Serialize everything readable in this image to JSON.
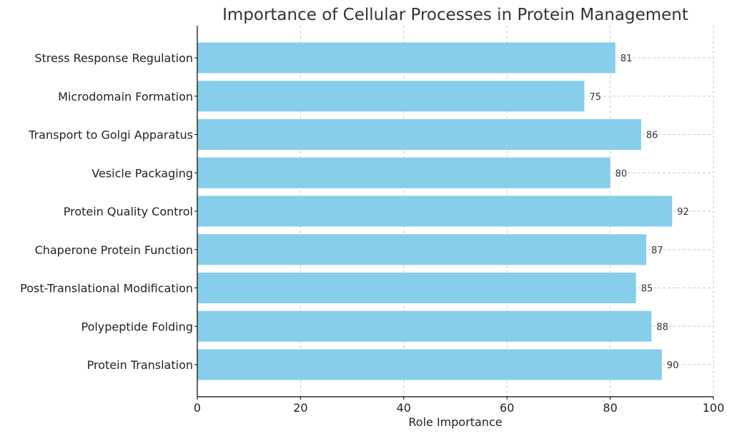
{
  "chart_data": {
    "type": "bar",
    "orientation": "horizontal",
    "title": "Importance of Cellular Processes in Protein Management",
    "xlabel": "Role Importance",
    "ylabel": "",
    "xlim": [
      0,
      100
    ],
    "xticks": [
      0,
      20,
      40,
      60,
      80,
      100
    ],
    "grid": true,
    "bar_color": "#87CEEB",
    "categories": [
      "Protein Translation",
      "Polypeptide Folding",
      "Post-Translational Modification",
      "Chaperone Protein Function",
      "Protein Quality Control",
      "Vesicle Packaging",
      "Transport to Golgi Apparatus",
      "Microdomain Formation",
      "Stress Response Regulation"
    ],
    "values": [
      90,
      88,
      85,
      87,
      92,
      80,
      86,
      75,
      81
    ]
  }
}
